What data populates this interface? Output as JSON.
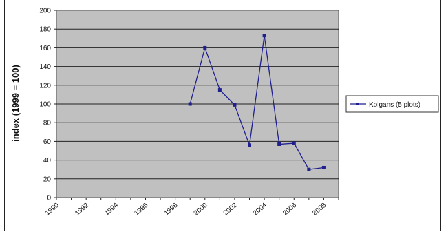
{
  "chart_data": {
    "type": "line",
    "title": "",
    "xlabel": "",
    "ylabel": "index (1999 = 100)",
    "ylim": [
      0,
      200
    ],
    "y_ticks": [
      0,
      20,
      40,
      60,
      80,
      100,
      120,
      140,
      160,
      180,
      200
    ],
    "xlim": [
      1990,
      2009
    ],
    "x_ticks": [
      "1990",
      "1992",
      "1994",
      "1996",
      "1998",
      "2000",
      "2002",
      "2004",
      "2006",
      "2008"
    ],
    "grid": true,
    "legend_position": "right",
    "series": [
      {
        "name": "Kolgans (5 plots)",
        "color": "#1f1f8f",
        "x": [
          1999,
          2000,
          2001,
          2002,
          2003,
          2004,
          2005,
          2006,
          2007,
          2008
        ],
        "y": [
          100,
          160,
          115,
          99,
          56,
          173,
          57,
          58,
          30,
          32
        ]
      }
    ]
  }
}
